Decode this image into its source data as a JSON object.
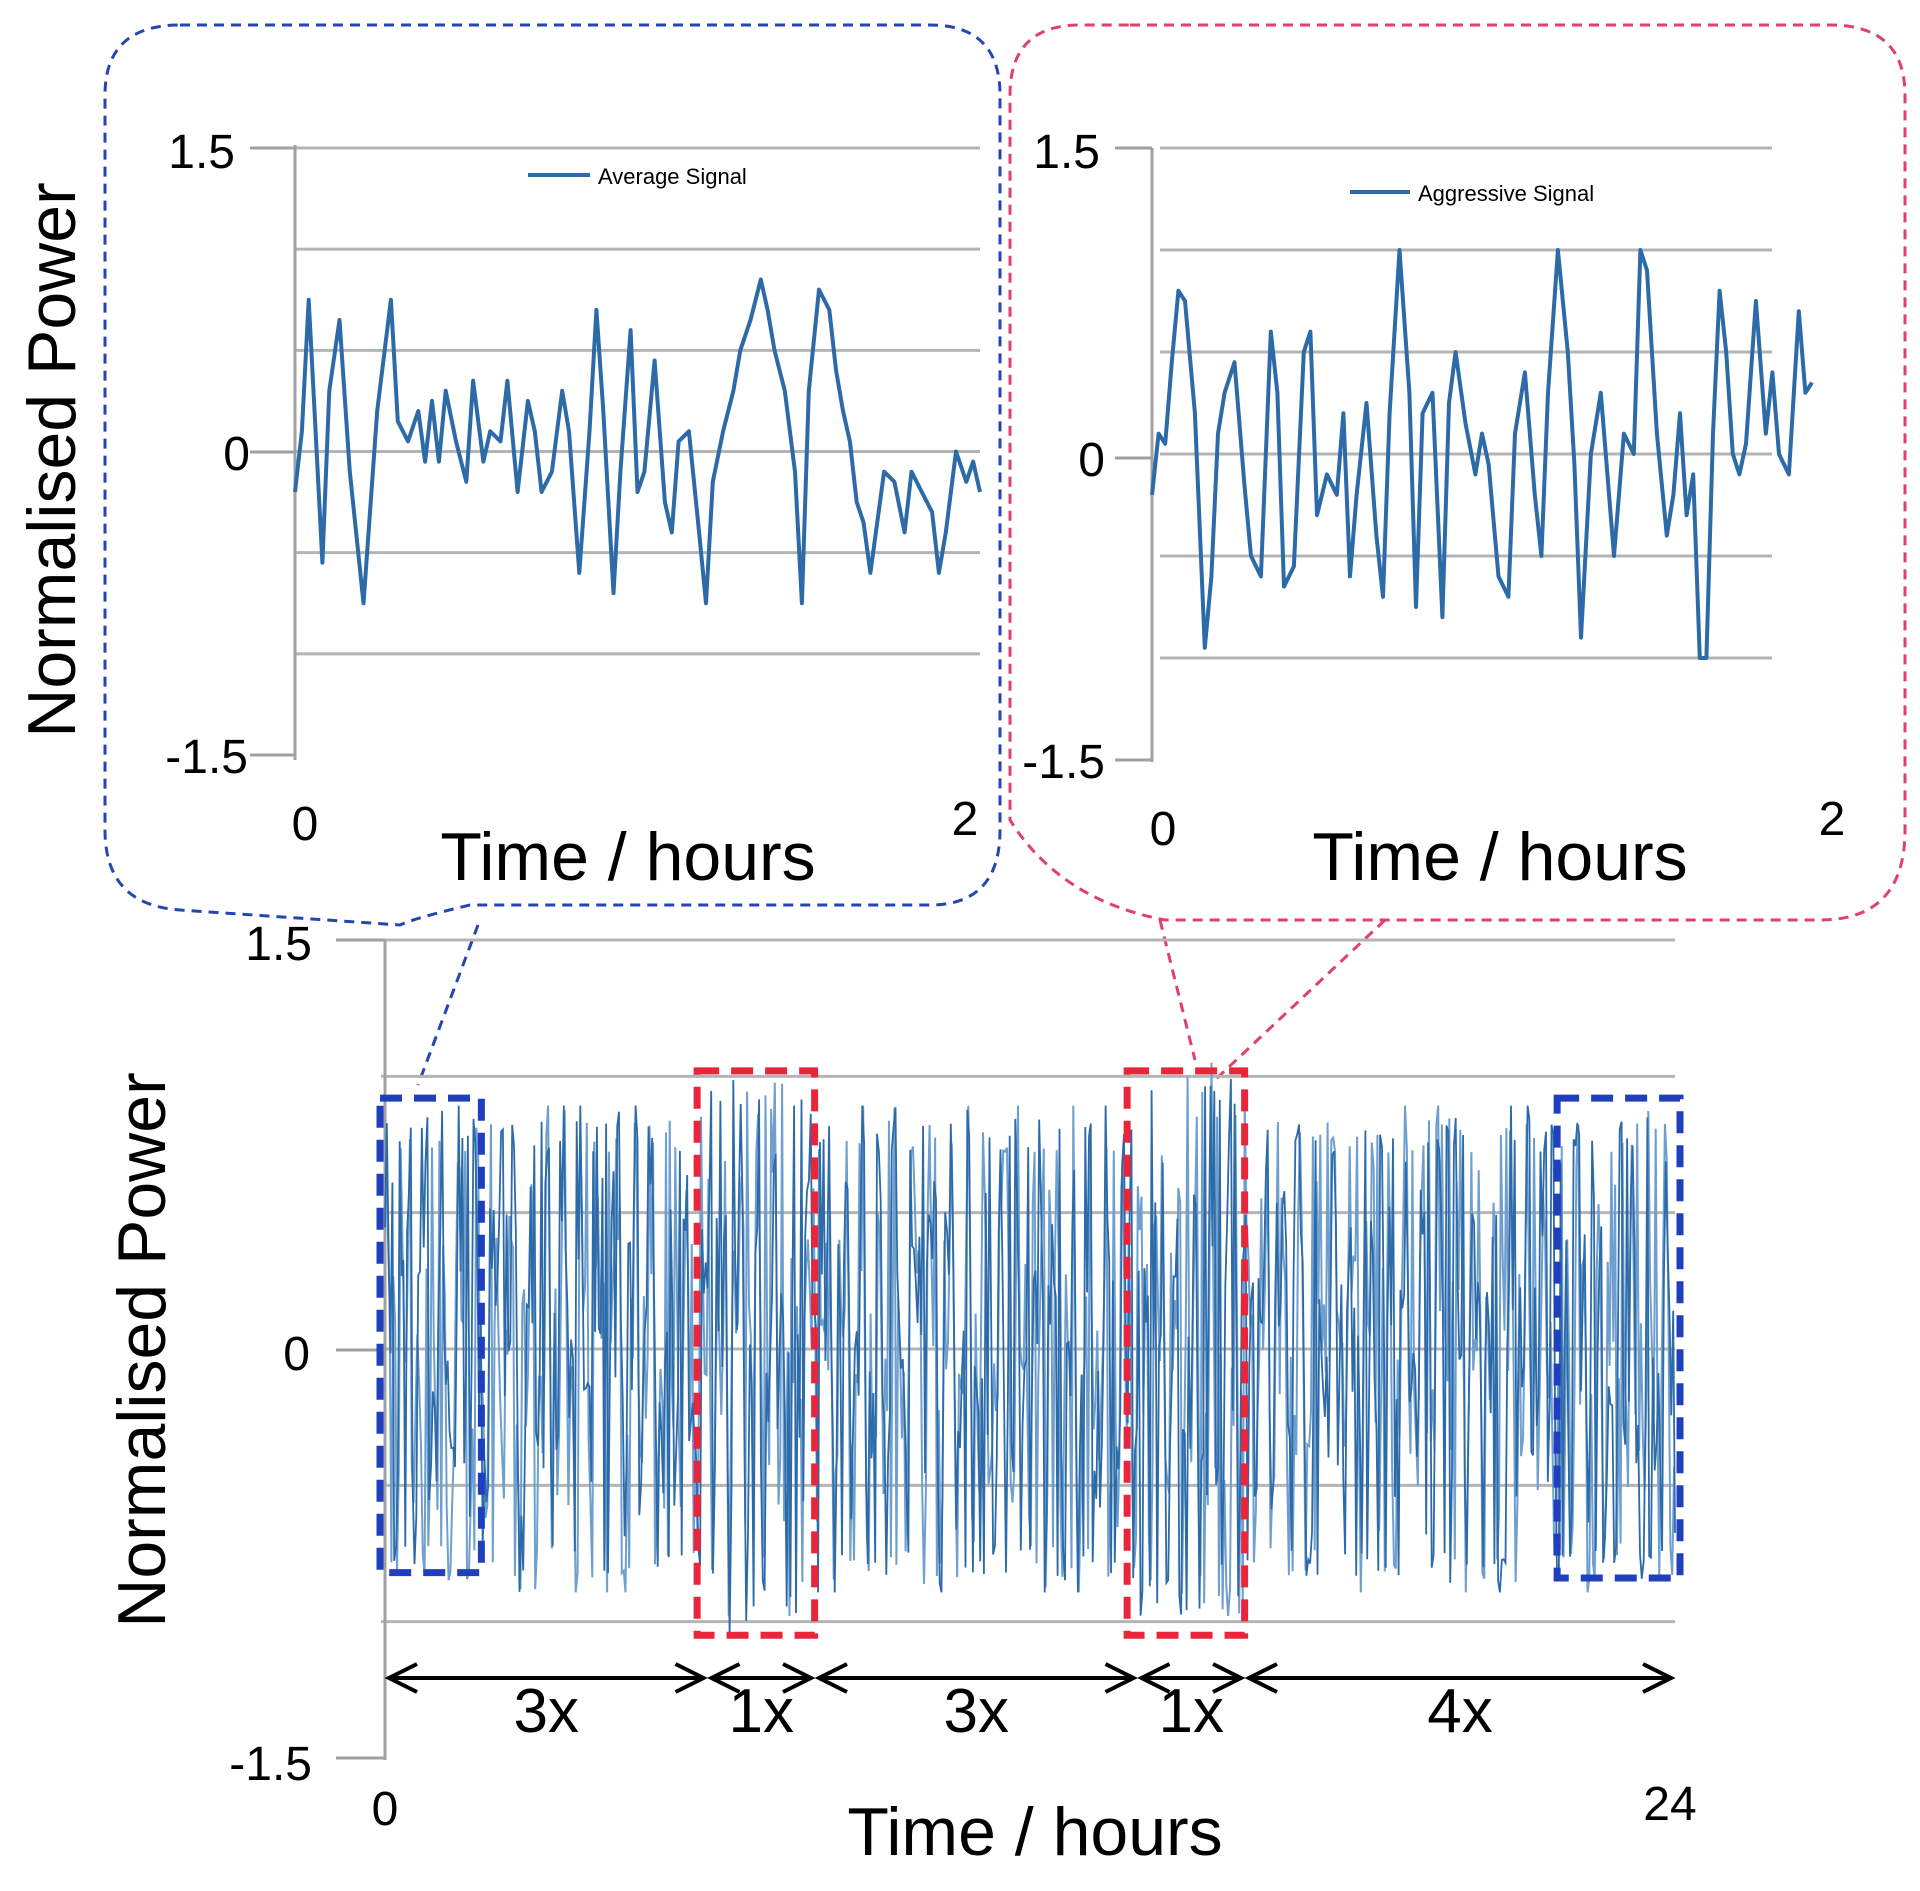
{
  "colors": {
    "line": "#2d6aa8",
    "line_light": "#6f9fcf",
    "grid": "#b4b4b4",
    "axis": "#a0a0a0",
    "average_box": "#1f3fbf",
    "aggressive_box": "#e8253a",
    "callout_average": "#2446b0",
    "callout_aggressive": "#e0406a",
    "text": "#000000"
  },
  "chart_data": [
    {
      "id": "average_inset",
      "type": "line",
      "legend": "Average Signal",
      "ylabel": "Normalised Power",
      "xlabel": "Time / hours",
      "xlim": [
        0,
        2
      ],
      "ylim": [
        -1.5,
        1.5
      ],
      "yticks": [
        1.5,
        0,
        -1.5
      ],
      "ytick_labels": [
        "1.5",
        "0",
        "-1.5"
      ],
      "xtick_labels": [
        "0",
        "2"
      ],
      "gridlines": [
        1.5,
        1.0,
        0.5,
        0,
        -0.5,
        -1.0
      ],
      "x": [
        0,
        0.02,
        0.04,
        0.06,
        0.08,
        0.1,
        0.13,
        0.16,
        0.2,
        0.24,
        0.28,
        0.3,
        0.33,
        0.36,
        0.38,
        0.4,
        0.42,
        0.44,
        0.47,
        0.5,
        0.52,
        0.55,
        0.57,
        0.6,
        0.62,
        0.65,
        0.68,
        0.7,
        0.72,
        0.75,
        0.78,
        0.8,
        0.83,
        0.86,
        0.88,
        0.9,
        0.93,
        0.95,
        0.98,
        1.0,
        1.02,
        1.05,
        1.08,
        1.1,
        1.12,
        1.15,
        1.18,
        1.2,
        1.22,
        1.25,
        1.28,
        1.3,
        1.33,
        1.36,
        1.38,
        1.4,
        1.43,
        1.46,
        1.48,
        1.5,
        1.53,
        1.56,
        1.58,
        1.6,
        1.62,
        1.64,
        1.66,
        1.68,
        1.72,
        1.75,
        1.78,
        1.8,
        1.83,
        1.86,
        1.88,
        1.9,
        1.93,
        1.96,
        1.98,
        2.0
      ],
      "y": [
        -0.2,
        0.1,
        0.75,
        0.1,
        -0.55,
        0.3,
        0.65,
        -0.1,
        -0.75,
        0.2,
        0.75,
        0.15,
        0.05,
        0.2,
        -0.05,
        0.25,
        -0.05,
        0.3,
        0.05,
        -0.15,
        0.35,
        -0.05,
        0.1,
        0.05,
        0.35,
        -0.2,
        0.25,
        0.1,
        -0.2,
        -0.1,
        0.3,
        0.1,
        -0.6,
        0.1,
        0.7,
        0.2,
        -0.7,
        -0.1,
        0.6,
        -0.2,
        -0.1,
        0.45,
        -0.25,
        -0.4,
        0.05,
        0.1,
        -0.4,
        -0.75,
        -0.15,
        0.1,
        0.3,
        0.5,
        0.65,
        0.85,
        0.7,
        0.5,
        0.3,
        -0.1,
        -0.75,
        0.3,
        0.8,
        0.7,
        0.4,
        0.2,
        0.05,
        -0.25,
        -0.35,
        -0.6,
        -0.1,
        -0.15,
        -0.4,
        -0.1,
        -0.2,
        -0.3,
        -0.6,
        -0.4,
        0.0,
        -0.15,
        -0.05,
        -0.2
      ]
    },
    {
      "id": "aggressive_inset",
      "type": "line",
      "legend": "Aggressive Signal",
      "ylabel": "",
      "xlabel": "Time / hours",
      "xlim": [
        0,
        2
      ],
      "ylim": [
        -1.5,
        1.5
      ],
      "yticks": [
        1.5,
        0,
        -1.5
      ],
      "ytick_labels": [
        "1.5",
        "0",
        "-1.5"
      ],
      "xtick_labels": [
        "0",
        "2"
      ],
      "gridlines": [
        1.5,
        1.0,
        0.5,
        0,
        -0.5,
        -1.0
      ],
      "x": [
        0,
        0.02,
        0.04,
        0.06,
        0.08,
        0.1,
        0.13,
        0.16,
        0.18,
        0.2,
        0.22,
        0.25,
        0.28,
        0.3,
        0.33,
        0.36,
        0.38,
        0.4,
        0.43,
        0.46,
        0.48,
        0.5,
        0.53,
        0.56,
        0.58,
        0.6,
        0.62,
        0.65,
        0.68,
        0.7,
        0.72,
        0.75,
        0.78,
        0.8,
        0.82,
        0.85,
        0.88,
        0.9,
        0.92,
        0.95,
        0.98,
        1.0,
        1.02,
        1.05,
        1.08,
        1.1,
        1.13,
        1.16,
        1.18,
        1.2,
        1.23,
        1.26,
        1.28,
        1.3,
        1.33,
        1.36,
        1.38,
        1.4,
        1.43,
        1.46,
        1.48,
        1.5,
        1.53,
        1.56,
        1.58,
        1.6,
        1.62,
        1.64,
        1.66,
        1.68,
        1.7,
        1.72,
        1.74,
        1.76,
        1.78,
        1.8,
        1.83,
        1.86,
        1.88,
        1.9,
        1.93,
        1.96,
        1.98,
        2.0
      ],
      "y": [
        -0.2,
        0.1,
        0.05,
        0.45,
        0.8,
        0.75,
        0.2,
        -0.95,
        -0.6,
        0.1,
        0.3,
        0.45,
        -0.15,
        -0.5,
        -0.6,
        0.6,
        0.3,
        -0.65,
        -0.55,
        0.5,
        0.6,
        -0.3,
        -0.1,
        -0.2,
        0.2,
        -0.6,
        -0.2,
        0.25,
        -0.4,
        -0.7,
        0.2,
        1.0,
        0.3,
        -0.75,
        0.2,
        0.3,
        -0.8,
        0.25,
        0.5,
        0.15,
        -0.1,
        0.1,
        -0.05,
        -0.6,
        -0.7,
        0.1,
        0.4,
        -0.2,
        -0.5,
        0.3,
        1.0,
        0.5,
        -0.05,
        -0.9,
        0.0,
        0.3,
        -0.1,
        -0.5,
        0.1,
        0.0,
        1.0,
        0.9,
        0.1,
        -0.4,
        -0.2,
        0.2,
        -0.3,
        -0.1,
        -1.0,
        -1.0,
        0.1,
        0.8,
        0.5,
        0.0,
        -0.1,
        0.05,
        0.75,
        0.1,
        0.4,
        0.0,
        -0.1,
        0.7,
        0.3,
        0.35
      ]
    },
    {
      "id": "daily_profile",
      "type": "line",
      "legend": "",
      "ylabel": "Normalised Power",
      "xlabel": "Time / hours",
      "xlim": [
        0,
        24
      ],
      "ylim": [
        -1.5,
        1.5
      ],
      "yticks": [
        1.5,
        0,
        -1.5
      ],
      "ytick_labels": [
        "1.5",
        "0",
        "-1.5"
      ],
      "xtick_labels": [
        "0",
        "24"
      ],
      "gridlines": [
        1.5,
        1.0,
        0.5,
        0,
        -0.5,
        -1.0
      ],
      "segments": [
        {
          "label": "3x",
          "start": 0,
          "end": 6
        },
        {
          "label": "1x",
          "start": 6,
          "end": 8
        },
        {
          "label": "3x",
          "start": 8,
          "end": 14
        },
        {
          "label": "1x",
          "start": 14,
          "end": 16
        },
        {
          "label": "4x",
          "start": 16,
          "end": 24
        }
      ],
      "highlight_boxes": [
        {
          "kind": "average",
          "start": 0,
          "end": 1.7,
          "top": 0.92,
          "bottom": -0.82
        },
        {
          "kind": "aggressive",
          "start": 5.9,
          "end": 7.9,
          "top": 1.02,
          "bottom": -1.05
        },
        {
          "kind": "aggressive",
          "start": 13.9,
          "end": 15.9,
          "top": 1.02,
          "bottom": -1.05
        },
        {
          "kind": "average",
          "start": 21.9,
          "end": 24,
          "top": 0.92,
          "bottom": -0.84
        }
      ],
      "signal": {
        "dense_waveform": true,
        "average_amplitude": 0.85,
        "aggressive_amplitude": 1.0,
        "aggressive_windows": [
          [
            6,
            8
          ],
          [
            14,
            16
          ]
        ]
      }
    }
  ]
}
